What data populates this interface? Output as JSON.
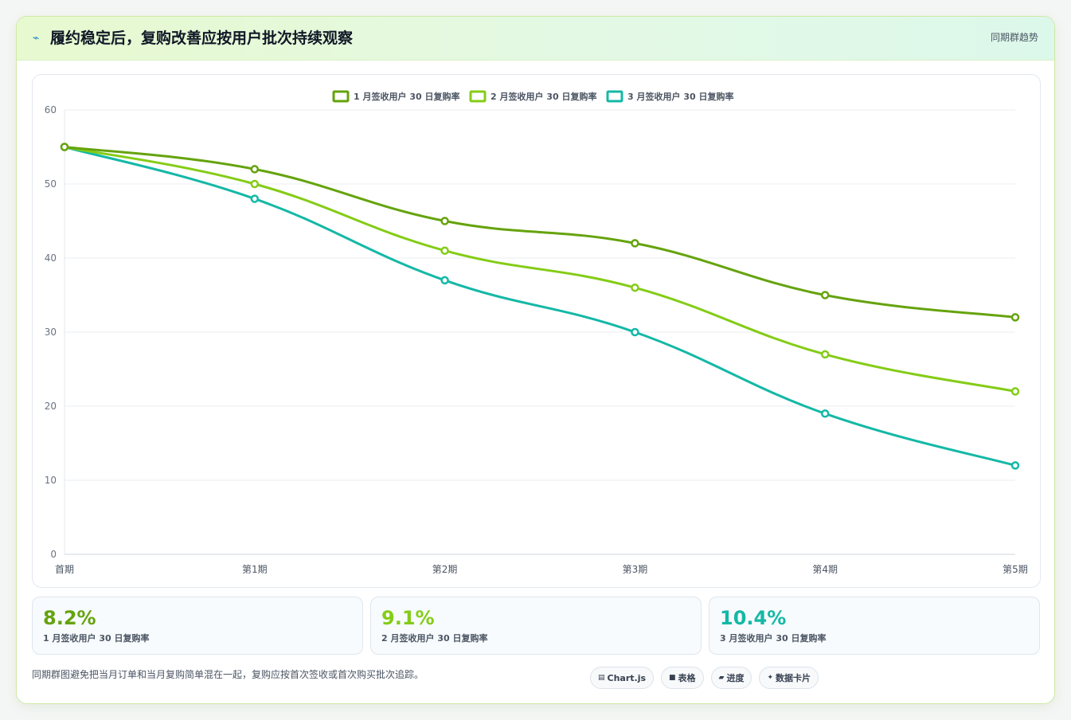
{
  "header": {
    "icon": "trend-icon",
    "title": "履约稳定后，复购改善应按用户批次持续观察",
    "tag": "同期群趋势"
  },
  "chart_data": {
    "type": "line",
    "title": "",
    "xlabel": "",
    "ylabel": "",
    "categories": [
      "首期",
      "第1期",
      "第2期",
      "第3期",
      "第4期",
      "第5期"
    ],
    "ylim": [
      0,
      60
    ],
    "yticks": [
      0,
      10,
      20,
      30,
      40,
      50,
      60
    ],
    "grid": true,
    "legend_position": "top-center",
    "series": [
      {
        "name": "1 月签收用户 30 日复购率",
        "color": "#65a30d",
        "values": [
          55,
          52,
          45,
          42,
          35,
          32
        ]
      },
      {
        "name": "2 月签收用户 30 日复购率",
        "color": "#84cc16",
        "values": [
          55,
          50,
          41,
          36,
          27,
          22
        ]
      },
      {
        "name": "3 月签收用户 30 日复购率",
        "color": "#14b8a6",
        "values": [
          55,
          48,
          37,
          30,
          19,
          12
        ]
      }
    ]
  },
  "stats": [
    {
      "value": "8.2%",
      "label": "1 月签收用户 30 日复购率",
      "color": "#65a30d"
    },
    {
      "value": "9.1%",
      "label": "2 月签收用户 30 日复购率",
      "color": "#84cc16"
    },
    {
      "value": "10.4%",
      "label": "3 月签收用户 30 日复购率",
      "color": "#14b8a6"
    }
  ],
  "footnote": "同期群图避免把当月订单和当月复购简单混在一起，复购应按首次签收或首次购买批次追踪。",
  "chips": [
    {
      "icon": "chart-icon",
      "glyph": "▤",
      "label": "Chart.js"
    },
    {
      "icon": "table-icon",
      "glyph": "■",
      "label": "表格"
    },
    {
      "icon": "progress-icon",
      "glyph": "▰",
      "label": "进度"
    },
    {
      "icon": "card-icon",
      "glyph": "✦",
      "label": "数据卡片"
    }
  ]
}
